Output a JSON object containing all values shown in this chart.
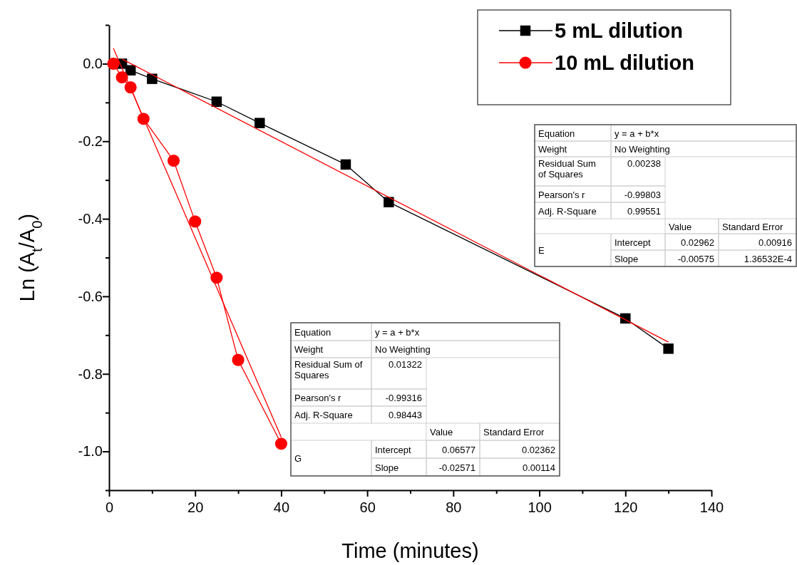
{
  "chart_data": {
    "type": "line",
    "xlabel": "Time (minutes)",
    "ylabel": "Ln (A$_{t}$/A$_{0}$)",
    "xlim": [
      0,
      140
    ],
    "ylim": [
      -1.1,
      0.1
    ],
    "xticks": [
      0,
      {
        "value": 10,
        "label": null
      },
      20,
      {
        "value": 30,
        "label": null
      },
      40,
      {
        "value": 50,
        "label": null
      },
      60,
      {
        "value": 70,
        "label": null
      },
      80,
      {
        "value": 90,
        "label": null
      },
      100,
      {
        "value": 110,
        "label": null
      },
      120,
      {
        "value": 130,
        "label": null
      },
      140
    ],
    "yticks": [
      {
        "value": -1.1,
        "label": null
      },
      {
        "value": -1.0,
        "label": "-1.0"
      },
      {
        "value": -0.9,
        "label": null
      },
      {
        "value": -0.8,
        "label": "-0.8"
      },
      {
        "value": -0.7,
        "label": null
      },
      {
        "value": -0.6,
        "label": "-0.6"
      },
      {
        "value": -0.5,
        "label": null
      },
      {
        "value": -0.4,
        "label": "-0.4"
      },
      {
        "value": -0.3,
        "label": null
      },
      {
        "value": -0.2,
        "label": "-0.2"
      },
      {
        "value": -0.1,
        "label": null
      },
      {
        "value": 0,
        "label": "0.0"
      },
      {
        "value": 0.1,
        "label": null
      }
    ],
    "grid": false,
    "legend": "top right",
    "line_style": "solid",
    "series": [
      {
        "name": "5 mL dilution",
        "color": "#000000",
        "marker": "square",
        "x": [
          3,
          5,
          10,
          25,
          35,
          55,
          65,
          120,
          130
        ],
        "values": [
          0.0,
          -0.017,
          -0.039,
          -0.098,
          -0.153,
          -0.26,
          -0.357,
          -0.657,
          -0.735
        ]
      },
      {
        "name": "10 mL dilution",
        "color": "#ff0000",
        "marker": "circle",
        "x": [
          1,
          3,
          5,
          8,
          15,
          20,
          25,
          30,
          40
        ],
        "values": [
          0.0,
          -0.035,
          -0.061,
          -0.142,
          -0.25,
          -0.407,
          -0.552,
          -0.764,
          -0.98
        ]
      },
      {
        "type": "line",
        "color": "#ff0000",
        "marker": "none",
        "x": [
          3,
          130
        ],
        "values": [
          0.012,
          -0.718
        ]
      },
      {
        "type": "line",
        "color": "#ff0000",
        "marker": "none",
        "x": [
          1,
          40
        ],
        "values": [
          0.04,
          -0.963
        ]
      }
    ],
    "annotations": [
      "Equation",
      "y = a + b*x",
      "Weight",
      "No Weighting",
      "Residual Sum of Squares",
      "0.00238",
      "Pearson's r",
      "-0.99803",
      "Adj. R-Square",
      "0.99551",
      "Value",
      "Standard Error",
      "E",
      "Intercept",
      "0.02962",
      "0.00916",
      "Slope",
      "-0.00575",
      "1.36532E-4",
      "Equation",
      "y = a + b*x",
      "Weight",
      "No Weighting",
      "Residual Sum of Squares",
      "0.01322",
      "Pearson's r",
      "-0.99316",
      "Adj. R-Square",
      "0.98443",
      "Value",
      "Standard Error",
      "G",
      "Intercept",
      "0.06577",
      "0.02362",
      "Slope",
      "-0.02571",
      "0.00114"
    ]
  }
}
